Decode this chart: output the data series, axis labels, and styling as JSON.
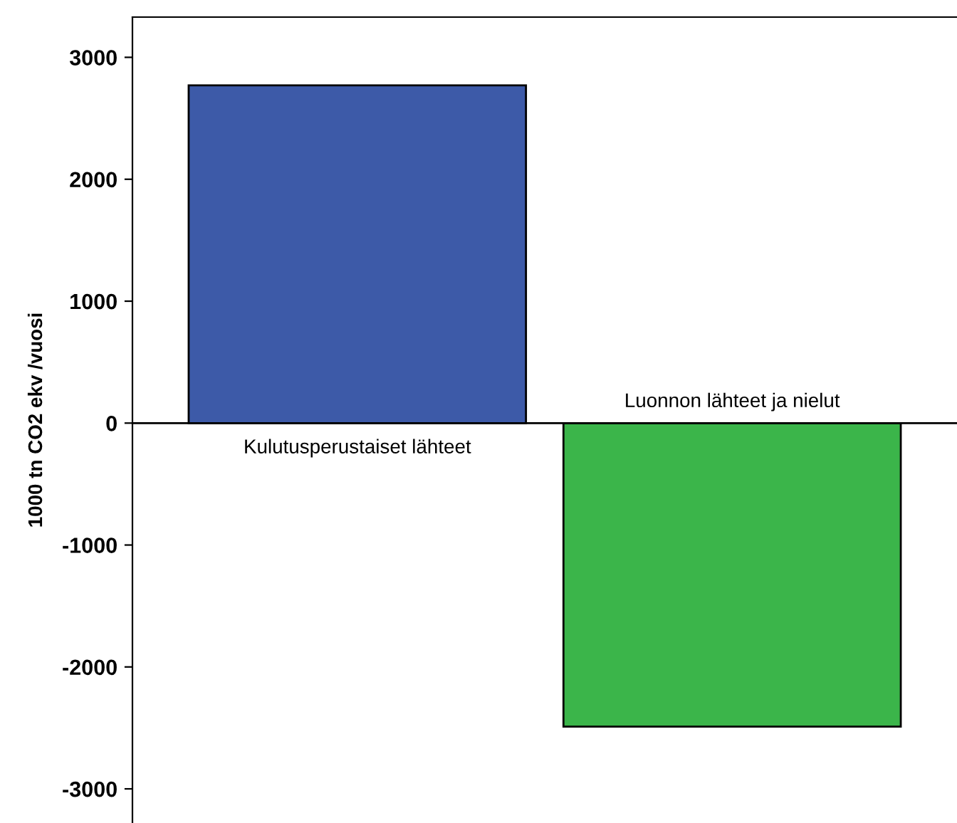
{
  "chart_data": {
    "type": "bar",
    "ylabel": "1000 tn CO2 ekv /vuosi",
    "categories": [
      "Kulutusperustaiset lähteet",
      "Luonnon lähteet ja nielut"
    ],
    "values": [
      2770,
      -2490
    ],
    "colors": [
      "#3d5aa8",
      "#3bb54a"
    ],
    "ylim": [
      -3280,
      3330
    ],
    "yticks": [
      -3000,
      -2000,
      -1000,
      0,
      1000,
      2000,
      3000
    ],
    "ref_lines": [
      {
        "axis": "y",
        "value": 0,
        "color": "#000000"
      }
    ],
    "grid": false
  }
}
